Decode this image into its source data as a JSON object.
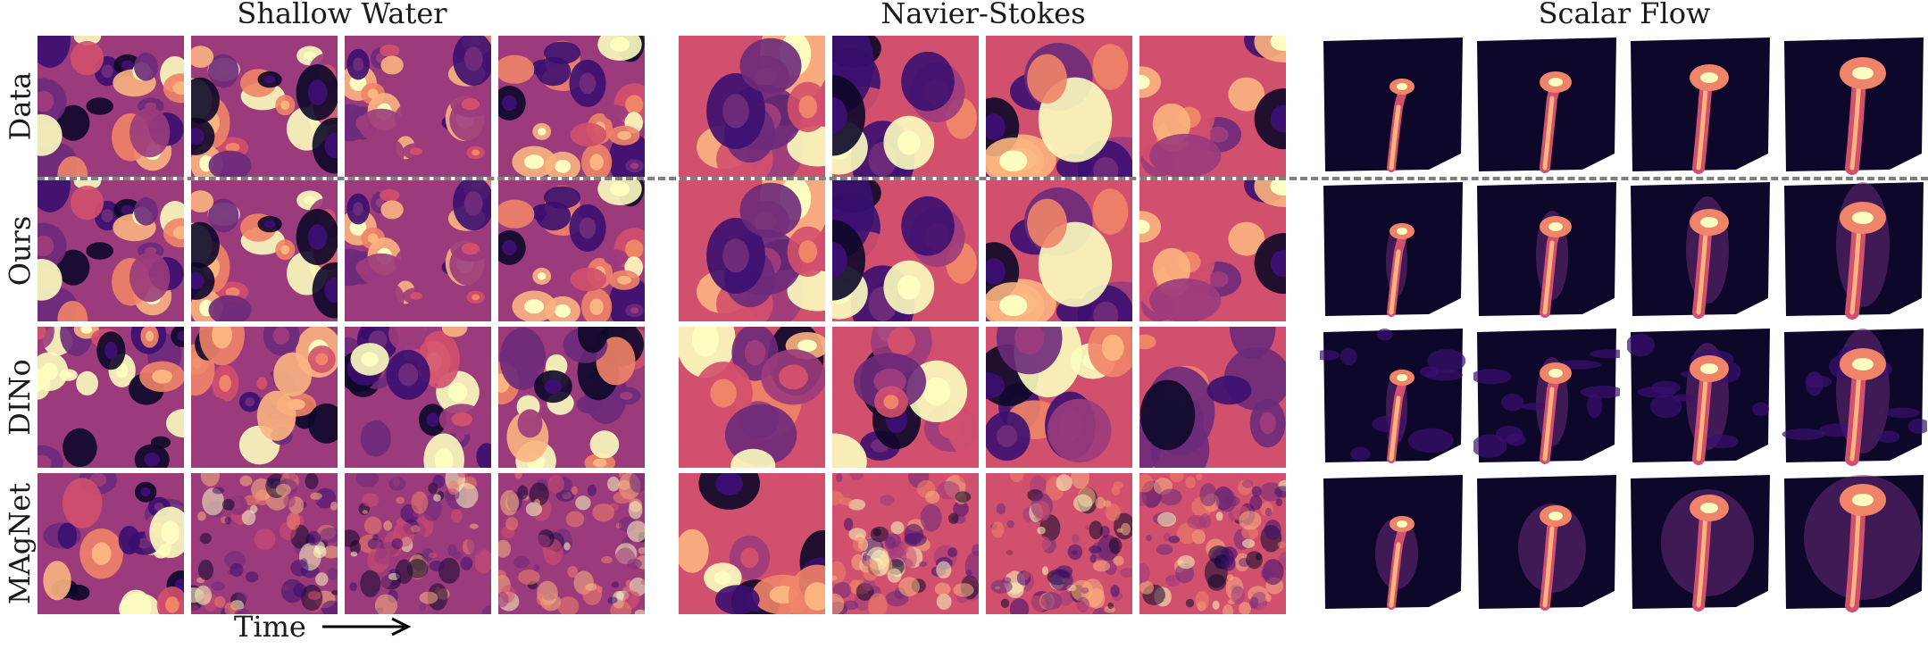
{
  "groups": [
    {
      "title": "Shallow Water",
      "style": "sw"
    },
    {
      "title": "Navier-Stokes",
      "style": "ns"
    },
    {
      "title": "Scalar Flow",
      "style": "sf"
    }
  ],
  "rows": [
    "Data",
    "Ours",
    "DINo",
    "MAgNet"
  ],
  "time_label": "Time",
  "time_arrow": "arrow-right-icon",
  "separator": "dashed-line",
  "colormap": [
    "#0d0829",
    "#3b0f70",
    "#6b2a7a",
    "#9b3b7c",
    "#d1506d",
    "#f08468",
    "#fbb47f",
    "#fcfdbf"
  ]
}
